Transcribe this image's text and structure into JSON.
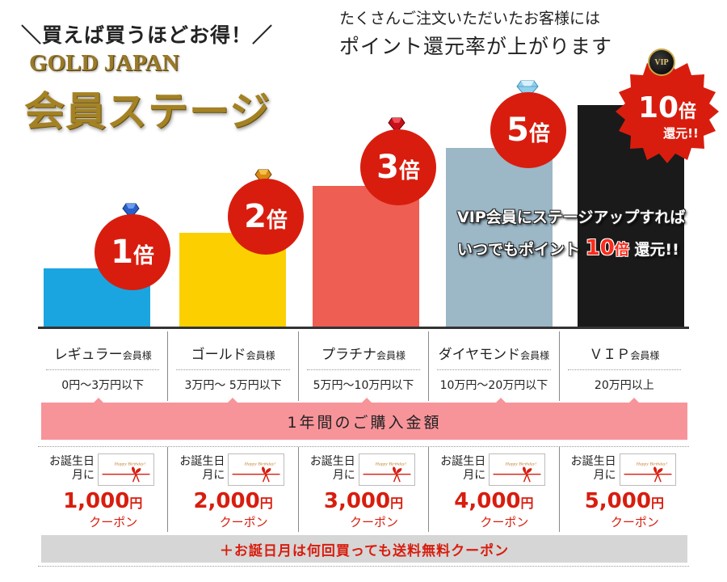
{
  "header": {
    "tagline": "＼買えば買うほどお得！／",
    "brand": "GOLD JAPAN",
    "title": "会員ステージ",
    "notice_line1": "たくさんご注文いただいたお客様には",
    "notice_line2": "ポイント還元率が上がります"
  },
  "stages": [
    {
      "multiplier": "1",
      "unit": "倍",
      "bar_color": "#1aa5e0",
      "gem_color": "#2a5fc9",
      "label": "レギュラー",
      "suffix": "会員様",
      "range": "0円〜3万円以下"
    },
    {
      "multiplier": "2",
      "unit": "倍",
      "bar_color": "#fcd000",
      "gem_color": "#d98a10",
      "label": "ゴールド",
      "suffix": "会員様",
      "range": "3万円〜 5万円以下"
    },
    {
      "multiplier": "3",
      "unit": "倍",
      "bar_color": "#ee5e52",
      "gem_color": "#c8101a",
      "label": "プラチナ",
      "suffix": "会員様",
      "range": "5万円〜10万円以下"
    },
    {
      "multiplier": "5",
      "unit": "倍",
      "bar_color": "#9cb7c6",
      "gem_color": "#8fd0ef",
      "label": "ダイヤモンド",
      "suffix": "会員様",
      "range": "10万円〜20万円以下"
    },
    {
      "multiplier": "10",
      "unit": "倍",
      "bar_color": "#1a1a1a",
      "gem_color": "#000000",
      "label": "ＶＩＰ",
      "suffix": "会員様",
      "range": "20万円以上"
    }
  ],
  "vip": {
    "badge": "VIP",
    "burst_multiplier": "10",
    "burst_unit": "倍",
    "burst_sub": "還元!!",
    "message_line1": "VIP会員にステージアップすれば",
    "message_line2_pre": "いつでもポイント ",
    "message_line2_num": "10",
    "message_line2_unit": "倍",
    "message_line2_post": " 還元!!"
  },
  "banner": {
    "text": "1年間のご購入金額"
  },
  "coupons": [
    {
      "bday": "お誕生日月に",
      "amount": "1,000",
      "yen": "円",
      "type": "クーポン"
    },
    {
      "bday": "お誕生日月に",
      "amount": "2,000",
      "yen": "円",
      "type": "クーポン"
    },
    {
      "bday": "お誕生日月に",
      "amount": "3,000",
      "yen": "円",
      "type": "クーポン"
    },
    {
      "bday": "お誕生日月に",
      "amount": "4,000",
      "yen": "円",
      "type": "クーポン"
    },
    {
      "bday": "お誕生日月に",
      "amount": "5,000",
      "yen": "円",
      "type": "クーポン"
    }
  ],
  "card_text": "Happy Birthday!",
  "footer": {
    "text": "＋お誕日月は何回買っても送料無料クーポン"
  },
  "colors": {
    "accent_red": "#d81d0e",
    "gold": "#a48224",
    "banner_pink": "#f7949a"
  }
}
